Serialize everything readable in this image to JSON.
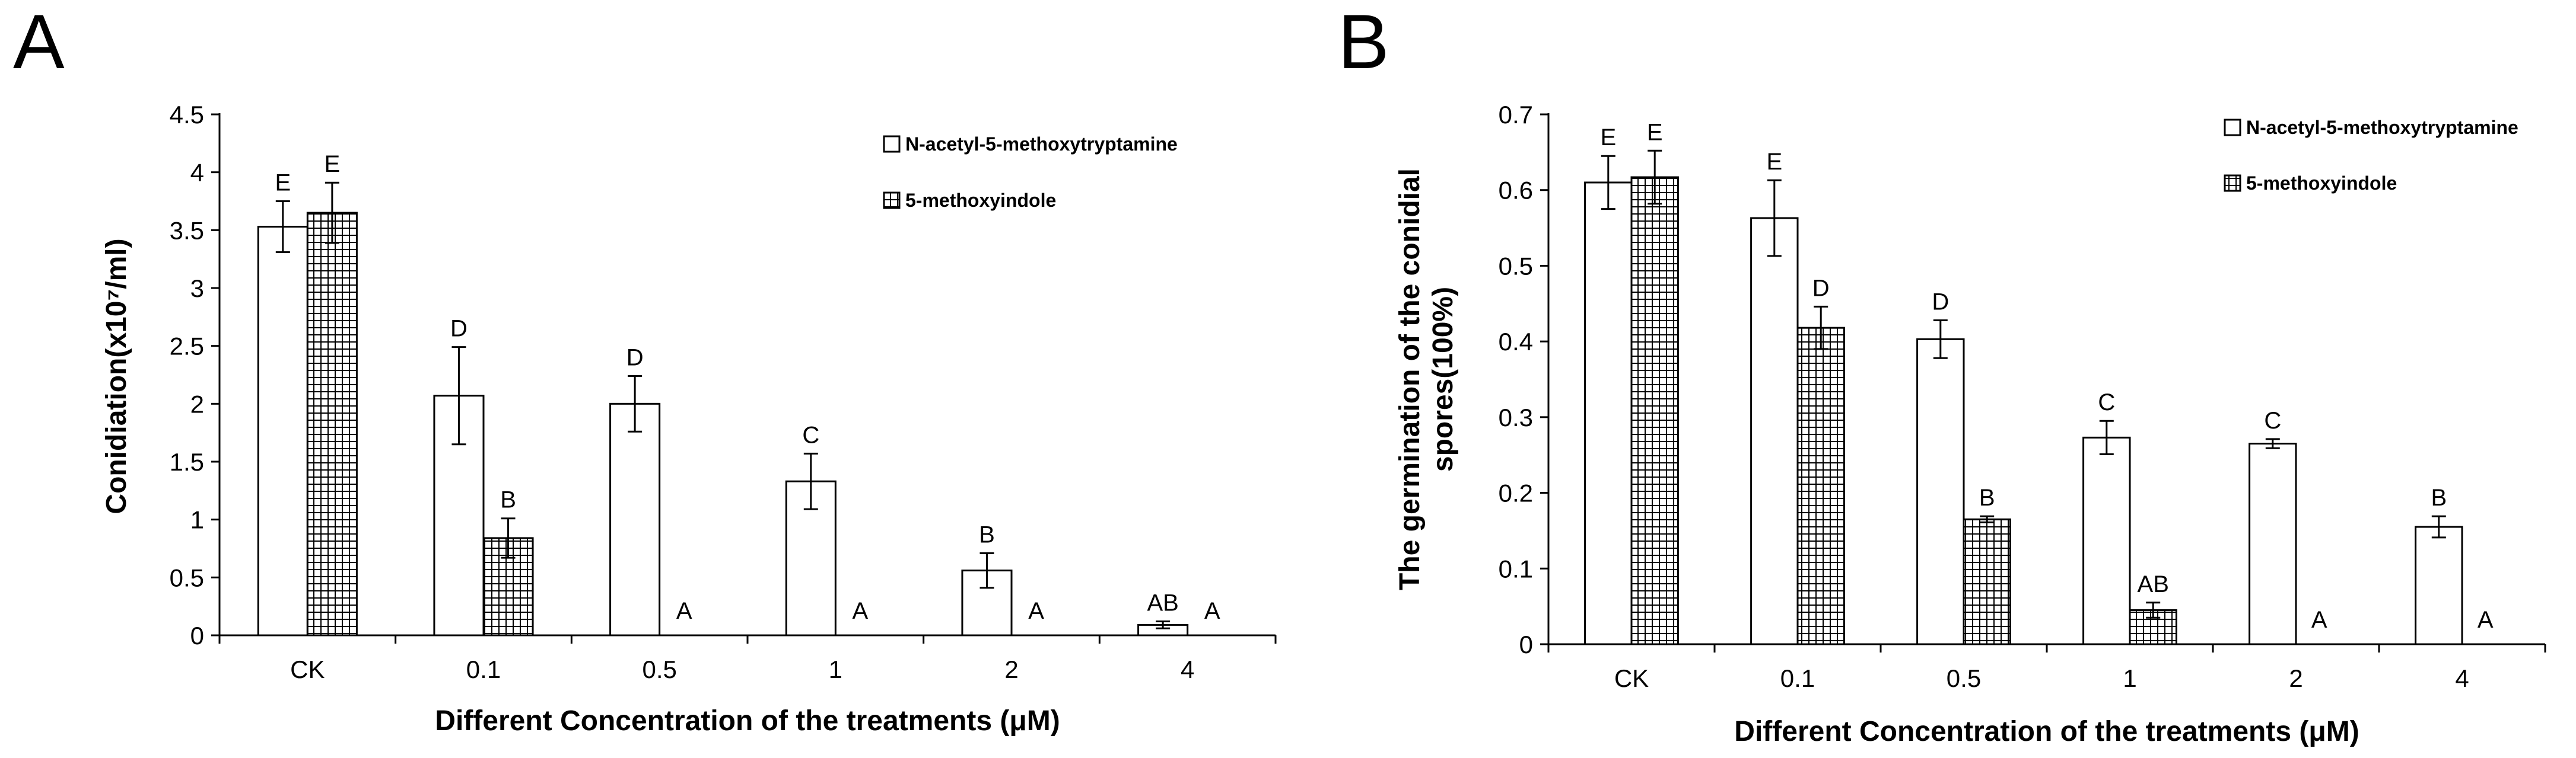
{
  "chart_data": [
    {
      "panel": "A",
      "type": "bar",
      "title": "",
      "xlabel": "Different  Concentration of the treatments (μM)",
      "ylabel": "Conidiation(x10⁷/ml)",
      "ylim": [
        0,
        4.5
      ],
      "yticks": [
        "0",
        "0.5",
        "1",
        "1.5",
        "2",
        "2.5",
        "3",
        "3.5",
        "4",
        "4.5"
      ],
      "categories": [
        "CK",
        "0.1",
        "0.5",
        "1",
        "2",
        "4"
      ],
      "legend_position": "top-right",
      "series": [
        {
          "name": "N-acetyl-5-methoxytryptamine",
          "fill": "open",
          "values": [
            3.53,
            2.07,
            2.0,
            1.33,
            0.56,
            0.09
          ],
          "errors": [
            0.22,
            0.42,
            0.24,
            0.24,
            0.15,
            0.03
          ],
          "labels": [
            "E",
            "D",
            "D",
            "C",
            "B",
            "AB"
          ]
        },
        {
          "name": "5-methoxyindole",
          "fill": "grid",
          "values": [
            3.65,
            0.84,
            0,
            0,
            0,
            0
          ],
          "errors": [
            0.26,
            0.17,
            0,
            0,
            0,
            0
          ],
          "labels": [
            "E",
            "B",
            "A",
            "A",
            "A",
            "A"
          ]
        }
      ]
    },
    {
      "panel": "B",
      "type": "bar",
      "title": "",
      "xlabel": "Different  Concentration of the treatments (μM)",
      "ylabel": "The germination of the conidial spores(100%)",
      "ylabel_lines": [
        "The germination of the conidial",
        "spores(100%)"
      ],
      "ylim": [
        0,
        0.7
      ],
      "yticks": [
        "0",
        "0.1",
        "0.2",
        "0.3",
        "0.4",
        "0.5",
        "0.6",
        "0.7"
      ],
      "categories": [
        "CK",
        "0.1",
        "0.5",
        "1",
        "2",
        "4"
      ],
      "legend_position": "top-right",
      "series": [
        {
          "name": "N-acetyl-5-methoxytryptamine",
          "fill": "open",
          "values": [
            0.61,
            0.563,
            0.403,
            0.273,
            0.265,
            0.155
          ],
          "errors": [
            0.035,
            0.05,
            0.025,
            0.022,
            0.006,
            0.014
          ],
          "labels": [
            "E",
            "E",
            "D",
            "C",
            "C",
            "B"
          ]
        },
        {
          "name": "5-methoxyindole",
          "fill": "grid",
          "values": [
            0.617,
            0.418,
            0.165,
            0.045,
            0,
            0
          ],
          "errors": [
            0.035,
            0.028,
            0.004,
            0.01,
            0,
            0
          ],
          "labels": [
            "E",
            "D",
            "B",
            "AB",
            "A",
            "A"
          ]
        }
      ]
    }
  ]
}
